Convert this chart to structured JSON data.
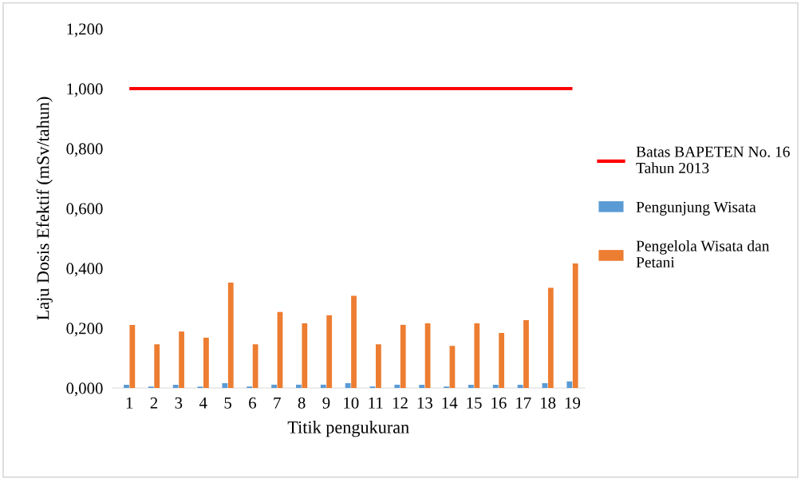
{
  "chart_data": {
    "type": "bar",
    "xlabel": "Titik pengukuran",
    "ylabel": "Laju Dosis Efektif (mSv/tahun)",
    "categories": [
      "1",
      "2",
      "3",
      "4",
      "5",
      "6",
      "7",
      "8",
      "9",
      "10",
      "11",
      "12",
      "13",
      "14",
      "15",
      "16",
      "17",
      "18",
      "19"
    ],
    "series": [
      {
        "name": "Batas BAPETEN No. 16 Tahun 2013",
        "type": "line",
        "color": "#ff0000",
        "values": [
          1.0,
          1.0,
          1.0,
          1.0,
          1.0,
          1.0,
          1.0,
          1.0,
          1.0,
          1.0,
          1.0,
          1.0,
          1.0,
          1.0,
          1.0,
          1.0,
          1.0,
          1.0,
          1.0
        ]
      },
      {
        "name": "Pengunjung Wisata",
        "color": "#5b9bd5",
        "values": [
          0.011,
          0.005,
          0.011,
          0.005,
          0.016,
          0.005,
          0.011,
          0.011,
          0.011,
          0.016,
          0.005,
          0.011,
          0.011,
          0.005,
          0.011,
          0.011,
          0.011,
          0.016,
          0.022
        ]
      },
      {
        "name": "Pengelola Wisata dan Petani",
        "color": "#ed7d31",
        "values": [
          0.211,
          0.146,
          0.189,
          0.168,
          0.352,
          0.146,
          0.254,
          0.216,
          0.243,
          0.308,
          0.146,
          0.211,
          0.216,
          0.141,
          0.216,
          0.184,
          0.227,
          0.335,
          0.416
        ]
      }
    ],
    "ylim": [
      0,
      1.2
    ],
    "yticks": [
      {
        "value": 0,
        "label": "0,000"
      },
      {
        "value": 0.2,
        "label": "0,200"
      },
      {
        "value": 0.4,
        "label": "0,400"
      },
      {
        "value": 0.6,
        "label": "0,600"
      },
      {
        "value": 0.8,
        "label": "0,800"
      },
      {
        "value": 1.0,
        "label": "1,000"
      },
      {
        "value": 1.2,
        "label": "1,200"
      }
    ],
    "grid": false,
    "legend": "right"
  }
}
